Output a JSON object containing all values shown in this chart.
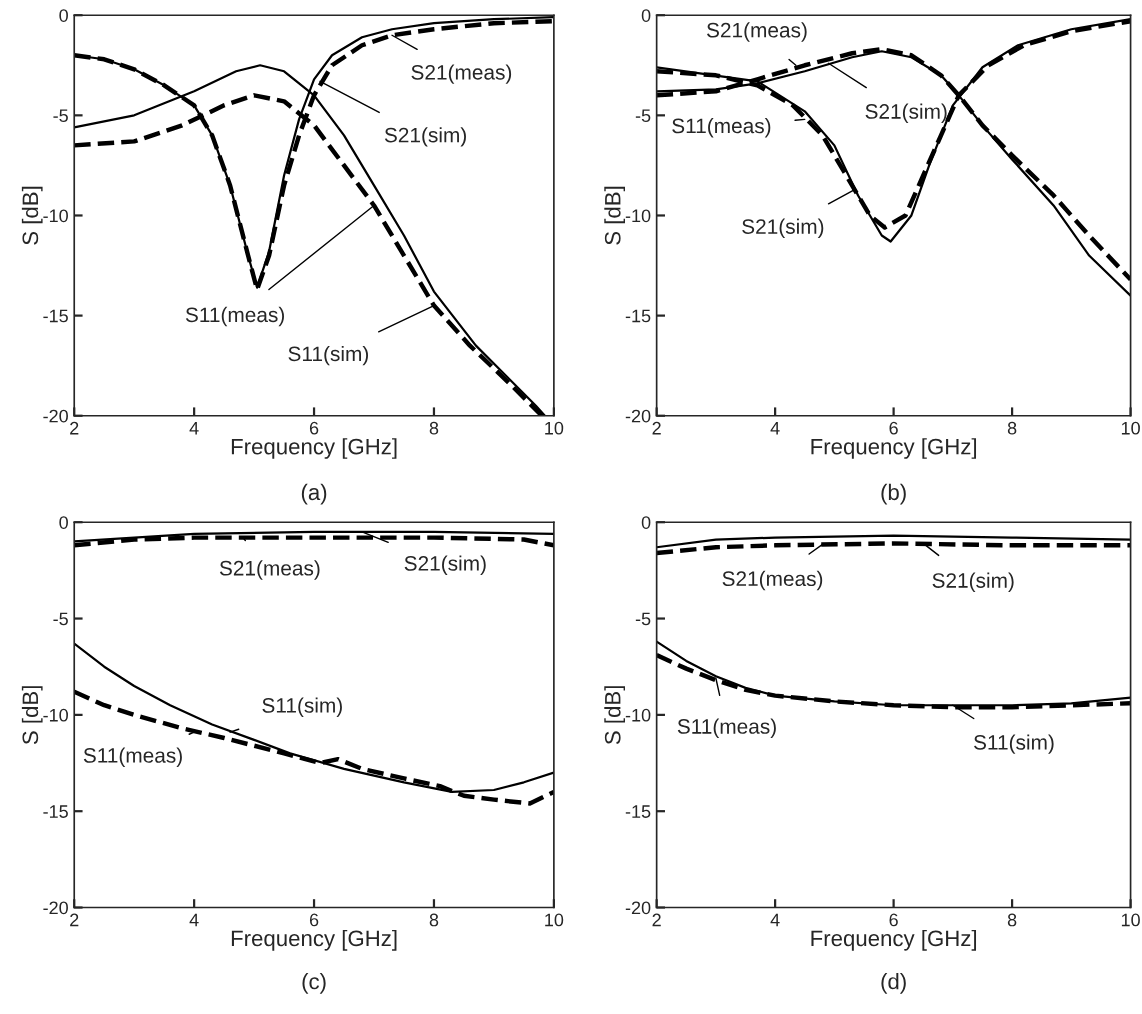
{
  "chart_data": [
    {
      "type": "line",
      "title": "(a)",
      "xlabel": "Frequency [GHz]",
      "ylabel": "S [dB]",
      "xlim": [
        2,
        10
      ],
      "ylim": [
        -20,
        0
      ],
      "xticks": [
        2,
        4,
        6,
        8,
        10
      ],
      "yticks": [
        -20,
        -15,
        -10,
        -5,
        0
      ],
      "series": [
        {
          "color": "#000000",
          "line_style": "dashed",
          "x": [
            2,
            2.5,
            3,
            3.5,
            4,
            4.3,
            4.6,
            4.9,
            5.05,
            5.25,
            5.5,
            5.75,
            6.0,
            6.3,
            6.8,
            7.3,
            8,
            9,
            10
          ],
          "values": [
            -2,
            -2.2,
            -2.7,
            -3.5,
            -4.5,
            -6,
            -8.5,
            -12,
            -13.7,
            -12,
            -8.5,
            -6,
            -4,
            -2.5,
            -1.5,
            -1,
            -0.7,
            -0.4,
            -0.3
          ]
        },
        {
          "color": "#000000",
          "line_style": "solid",
          "x": [
            2,
            2.5,
            3,
            3.5,
            4,
            4.3,
            4.6,
            4.9,
            5.05,
            5.25,
            5.5,
            5.75,
            6.0,
            6.3,
            6.8,
            7.3,
            8,
            9,
            10
          ],
          "values": [
            -2,
            -2.2,
            -2.7,
            -3.5,
            -4.5,
            -6,
            -8.5,
            -12,
            -13.6,
            -11.8,
            -8,
            -5.2,
            -3.2,
            -2,
            -1.1,
            -0.7,
            -0.4,
            -0.2,
            -0.1
          ]
        },
        {
          "color": "#000000",
          "line_style": "dashed",
          "x": [
            2,
            3,
            3.8,
            4.5,
            5,
            5.5,
            6,
            6.5,
            7,
            7.5,
            8,
            8.6,
            9.3,
            9.8
          ],
          "values": [
            -6.5,
            -6.3,
            -5.5,
            -4.5,
            -4.0,
            -4.3,
            -5.5,
            -7.5,
            -9.5,
            -12,
            -14.5,
            -16.5,
            -18.5,
            -20
          ]
        },
        {
          "color": "#000000",
          "line_style": "solid",
          "x": [
            2,
            3,
            4,
            4.7,
            5.1,
            5.5,
            6,
            6.5,
            7,
            7.5,
            8,
            8.7,
            9.7,
            9.85
          ],
          "values": [
            -5.6,
            -5,
            -3.8,
            -2.8,
            -2.5,
            -2.8,
            -4,
            -6,
            -8.5,
            -11,
            -13.8,
            -16.5,
            -19.5,
            -20
          ]
        }
      ],
      "annotations": [
        {
          "text": "S21(meas)",
          "x": 7.3,
          "y": -1
        },
        {
          "text": "S21(sim)",
          "x": 6.1,
          "y": -3.3
        },
        {
          "text": "S11(meas)",
          "x": 7.0,
          "y": -9.5
        },
        {
          "text": "S11(sim)",
          "x": 8,
          "y": -14.5
        }
      ]
    },
    {
      "type": "line",
      "title": "(b)",
      "xlabel": "Frequency [GHz]",
      "ylabel": "S [dB]",
      "xlim": [
        2,
        10
      ],
      "ylim": [
        -20,
        0
      ],
      "xticks": [
        2,
        4,
        6,
        8,
        10
      ],
      "yticks": [
        -20,
        -15,
        -10,
        -5,
        0
      ],
      "series": [
        {
          "color": "#000000",
          "line_style": "dashed",
          "x": [
            2,
            3,
            3.7,
            4.3,
            4.8,
            5.2,
            5.6,
            5.85,
            6.2,
            6.5,
            6.8,
            7.1,
            7.6,
            8.2,
            9,
            10
          ],
          "values": [
            -2.8,
            -3.0,
            -3.5,
            -4.5,
            -6,
            -8,
            -10,
            -10.6,
            -10,
            -8,
            -6,
            -4,
            -2.5,
            -1.5,
            -0.8,
            -0.3
          ]
        },
        {
          "color": "#000000",
          "line_style": "solid",
          "x": [
            2,
            3.7,
            4.5,
            5,
            5.4,
            5.8,
            5.95,
            6.3,
            6.6,
            7.0,
            7.5,
            8.1,
            9,
            10
          ],
          "values": [
            -2.6,
            -3.3,
            -4.8,
            -6.5,
            -9,
            -11,
            -11.3,
            -10,
            -7.5,
            -4.5,
            -2.6,
            -1.5,
            -0.7,
            -0.2
          ]
        },
        {
          "color": "#000000",
          "line_style": "dashed",
          "x": [
            2,
            3,
            3.7,
            4.5,
            5.3,
            5.8,
            6.3,
            6.8,
            7.1,
            7.5,
            8,
            8.7,
            9.3,
            10
          ],
          "values": [
            -4,
            -3.8,
            -3.2,
            -2.5,
            -1.9,
            -1.7,
            -2.0,
            -3,
            -4,
            -5.5,
            -7,
            -9,
            -11,
            -13.2
          ]
        },
        {
          "color": "#000000",
          "line_style": "solid",
          "x": [
            2,
            3,
            3.7,
            4.5,
            5.3,
            5.8,
            6.3,
            6.8,
            7.1,
            7.5,
            8,
            8.7,
            9.3,
            10
          ],
          "values": [
            -3.8,
            -3.7,
            -3.4,
            -2.8,
            -2.1,
            -1.8,
            -2.1,
            -3,
            -4,
            -5.5,
            -7.2,
            -9.5,
            -12,
            -14
          ]
        }
      ],
      "annotations": [
        {
          "text": "S21(meas)",
          "x": 4.35,
          "y": -2.5
        },
        {
          "text": "S21(sim)",
          "x": 4.9,
          "y": -2.4
        },
        {
          "text": "S11(meas)",
          "x": 4.5,
          "y": -5.2
        },
        {
          "text": "S21(sim)",
          "x": 5.35,
          "y": -8.7
        }
      ]
    },
    {
      "type": "line",
      "title": "(c)",
      "xlabel": "Frequency [GHz]",
      "ylabel": "S [dB]",
      "xlim": [
        2,
        10
      ],
      "ylim": [
        -20,
        0
      ],
      "xticks": [
        2,
        4,
        6,
        8,
        10
      ],
      "yticks": [
        -20,
        -15,
        -10,
        -5,
        0
      ],
      "series": [
        {
          "color": "#000000",
          "line_style": "dashed",
          "x": [
            2,
            3,
            4,
            6,
            8,
            9.5,
            10
          ],
          "values": [
            -1.2,
            -0.9,
            -0.8,
            -0.8,
            -0.8,
            -0.9,
            -1.2
          ]
        },
        {
          "color": "#000000",
          "line_style": "solid",
          "x": [
            2,
            3,
            4,
            6,
            8,
            10
          ],
          "values": [
            -1.0,
            -0.8,
            -0.6,
            -0.5,
            -0.5,
            -0.6
          ]
        },
        {
          "color": "#000000",
          "line_style": "solid",
          "x": [
            2,
            2.5,
            3,
            3.6,
            4.3,
            5,
            5.6,
            6.5,
            7.5,
            8.3,
            9,
            9.5,
            10
          ],
          "values": [
            -6.3,
            -7.5,
            -8.5,
            -9.5,
            -10.5,
            -11.3,
            -12,
            -12.8,
            -13.5,
            -14,
            -13.9,
            -13.5,
            -13
          ]
        },
        {
          "color": "#000000",
          "line_style": "dashed",
          "x": [
            2,
            2.5,
            3,
            3.8,
            4.5,
            5,
            5.5,
            6.1,
            6.4,
            6.8,
            7.5,
            8.1,
            8.5,
            9,
            9.6,
            10
          ],
          "values": [
            -8.8,
            -9.5,
            -10,
            -10.7,
            -11.2,
            -11.6,
            -12,
            -12.5,
            -12.3,
            -12.8,
            -13.3,
            -13.7,
            -14.2,
            -14.4,
            -14.6,
            -14.0
          ]
        }
      ],
      "annotations": [
        {
          "text": "S21(meas)",
          "x": 4.8,
          "y": -0.75
        },
        {
          "text": "S21(sim)",
          "x": 6.8,
          "y": -0.5
        },
        {
          "text": "S11(sim)",
          "x": 4.6,
          "y": -10.9
        },
        {
          "text": "S11(meas)",
          "x": 4.0,
          "y": -10.9
        }
      ]
    },
    {
      "type": "line",
      "title": "(d)",
      "xlabel": "Frequency [GHz]",
      "ylabel": "S [dB]",
      "xlim": [
        2,
        10
      ],
      "ylim": [
        -20,
        0
      ],
      "xticks": [
        2,
        4,
        6,
        8,
        10
      ],
      "yticks": [
        -20,
        -15,
        -10,
        -5,
        0
      ],
      "series": [
        {
          "color": "#000000",
          "line_style": "solid",
          "x": [
            2,
            3,
            4,
            6,
            8,
            10
          ],
          "values": [
            -1.3,
            -0.9,
            -0.8,
            -0.7,
            -0.8,
            -0.9
          ]
        },
        {
          "color": "#000000",
          "line_style": "dashed",
          "x": [
            2,
            3,
            4,
            6,
            8,
            10
          ],
          "values": [
            -1.6,
            -1.3,
            -1.2,
            -1.1,
            -1.2,
            -1.2
          ]
        },
        {
          "color": "#000000",
          "line_style": "solid",
          "x": [
            2,
            2.5,
            3,
            3.5,
            4,
            5,
            6,
            7,
            8,
            9,
            10
          ],
          "values": [
            -6.2,
            -7.2,
            -8,
            -8.6,
            -9,
            -9.3,
            -9.5,
            -9.5,
            -9.5,
            -9.4,
            -9.1
          ]
        },
        {
          "color": "#000000",
          "line_style": "dashed",
          "x": [
            2,
            2.5,
            3,
            3.5,
            4,
            5,
            6,
            7,
            8,
            9,
            10
          ],
          "values": [
            -6.9,
            -7.6,
            -8.2,
            -8.7,
            -9.0,
            -9.3,
            -9.5,
            -9.6,
            -9.6,
            -9.5,
            -9.4
          ]
        }
      ],
      "annotations": [
        {
          "text": "S21(meas)",
          "x": 4.8,
          "y": -1.15
        },
        {
          "text": "S21(sim)",
          "x": 6.5,
          "y": -1.1
        },
        {
          "text": "S11(meas)",
          "x": 3.0,
          "y": -8.1
        },
        {
          "text": "S11(sim)",
          "x": 7.0,
          "y": -9.5
        }
      ]
    }
  ]
}
